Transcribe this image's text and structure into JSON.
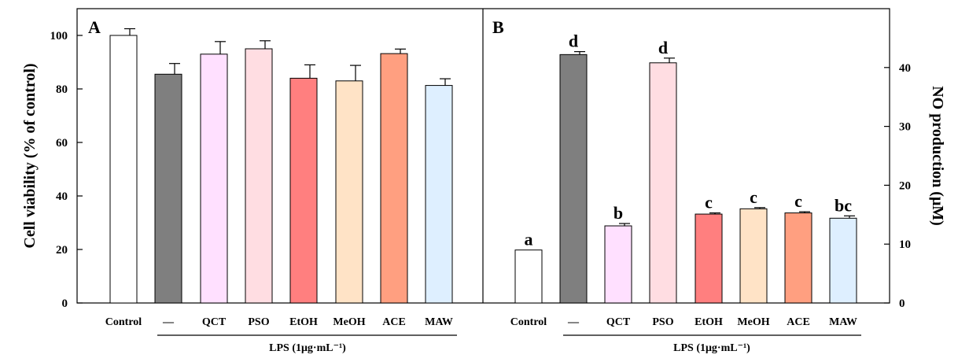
{
  "chart_data": [
    {
      "type": "bar",
      "panel": "A",
      "title": "",
      "ylabel": "Cell viability (% of control)",
      "ylim": [
        0,
        110
      ],
      "yticks": [
        0,
        20,
        40,
        60,
        80,
        100
      ],
      "categories": [
        "Control",
        "—",
        "QCT",
        "PSO",
        "EtOH",
        "MeOH",
        "ACE",
        "MAW"
      ],
      "values": [
        100,
        85.5,
        93,
        95,
        84,
        83,
        93.2,
        81.3
      ],
      "errors": [
        2.5,
        4,
        4.7,
        3,
        5,
        5.8,
        1.7,
        2.5
      ],
      "colors": [
        "#ffffff",
        "#7f7f7f",
        "#ffe0ff",
        "#ffdde2",
        "#ff7f7f",
        "#ffe3c6",
        "#ff9f80",
        "#deefff"
      ],
      "group_label": "LPS (1μg·mL⁻¹)"
    },
    {
      "type": "bar",
      "panel": "B",
      "title": "",
      "ylabel": "NO production (μM)",
      "ylim": [
        0,
        50
      ],
      "yticks": [
        0,
        10,
        20,
        30,
        40
      ],
      "categories": [
        "Control",
        "—",
        "QCT",
        "PSO",
        "EtOH",
        "MeOH",
        "ACE",
        "MAW"
      ],
      "values": [
        9,
        42.2,
        13.1,
        40.8,
        15.1,
        16,
        15.3,
        14.4
      ],
      "errors": [
        0,
        0.5,
        0.4,
        0.8,
        0.2,
        0.2,
        0.2,
        0.4
      ],
      "significance": [
        "a",
        "d",
        "b",
        "d",
        "c",
        "c",
        "c",
        "bc"
      ],
      "colors": [
        "#ffffff",
        "#7f7f7f",
        "#ffe0ff",
        "#ffdde2",
        "#ff7f7f",
        "#ffe3c6",
        "#ff9f80",
        "#deefff"
      ],
      "group_label": "LPS (1μg·mL⁻¹)"
    }
  ]
}
